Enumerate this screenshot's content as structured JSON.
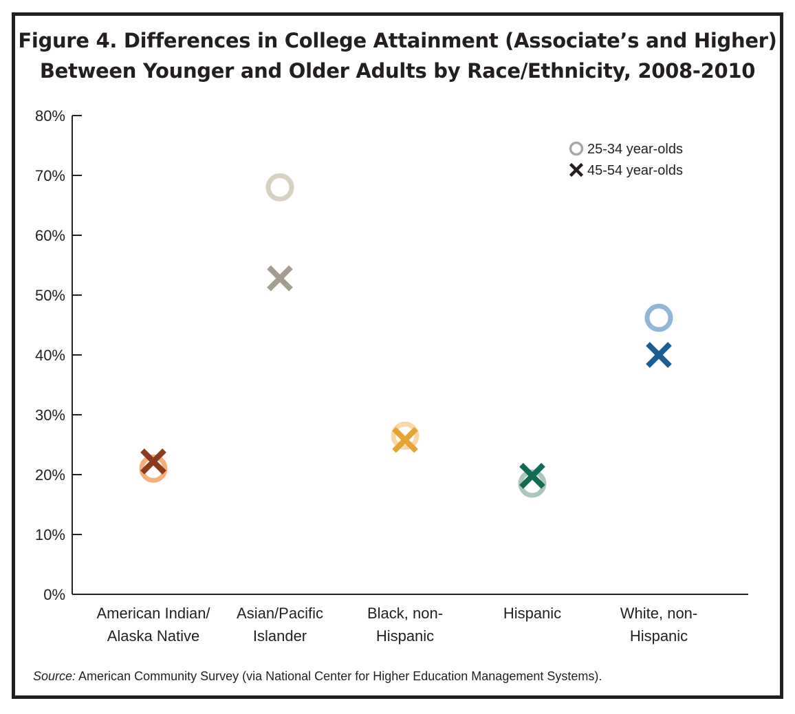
{
  "title": {
    "line1": "Figure 4. Differences in College Attainment (Associate’s and Higher)",
    "line2": "Between Younger and Older Adults by Race/Ethnicity, 2008-2010"
  },
  "source": {
    "label": "Source:",
    "text": " American Community Survey (via National Center for Higher Education Management Systems)."
  },
  "chart_data": {
    "type": "scatter",
    "title": "Figure 4. Differences in College Attainment (Associate’s and Higher) Between Younger and Older Adults by Race/Ethnicity, 2008-2010",
    "categories": [
      [
        "American Indian/",
        "Alaska Native"
      ],
      [
        "Asian/Pacific",
        "Islander"
      ],
      [
        "Black, non-",
        "Hispanic"
      ],
      [
        "Hispanic"
      ],
      [
        "White, non-",
        "Hispanic"
      ]
    ],
    "ylim": [
      0,
      80
    ],
    "yticks": [
      0,
      10,
      20,
      30,
      40,
      50,
      60,
      70,
      80
    ],
    "ytick_suffix": "%",
    "grid": false,
    "legend_position": "top-right",
    "series": [
      {
        "name": "25-34 year-olds",
        "marker": "circle",
        "values": [
          21,
          68,
          26.5,
          18.5,
          46.2
        ],
        "colors": [
          "#f2b07a",
          "#d6d1c4",
          "#fbd7a6",
          "#a9c7bd",
          "#93b6d8"
        ],
        "legend_color": "#a8a8a8"
      },
      {
        "name": "45-54 year-olds",
        "marker": "x",
        "values": [
          22.2,
          52.8,
          25.8,
          19.8,
          40
        ],
        "colors": [
          "#8b3a1e",
          "#a39e8f",
          "#e7a434",
          "#136b55",
          "#1a5e93"
        ],
        "legend_color": "#231f20"
      }
    ]
  }
}
